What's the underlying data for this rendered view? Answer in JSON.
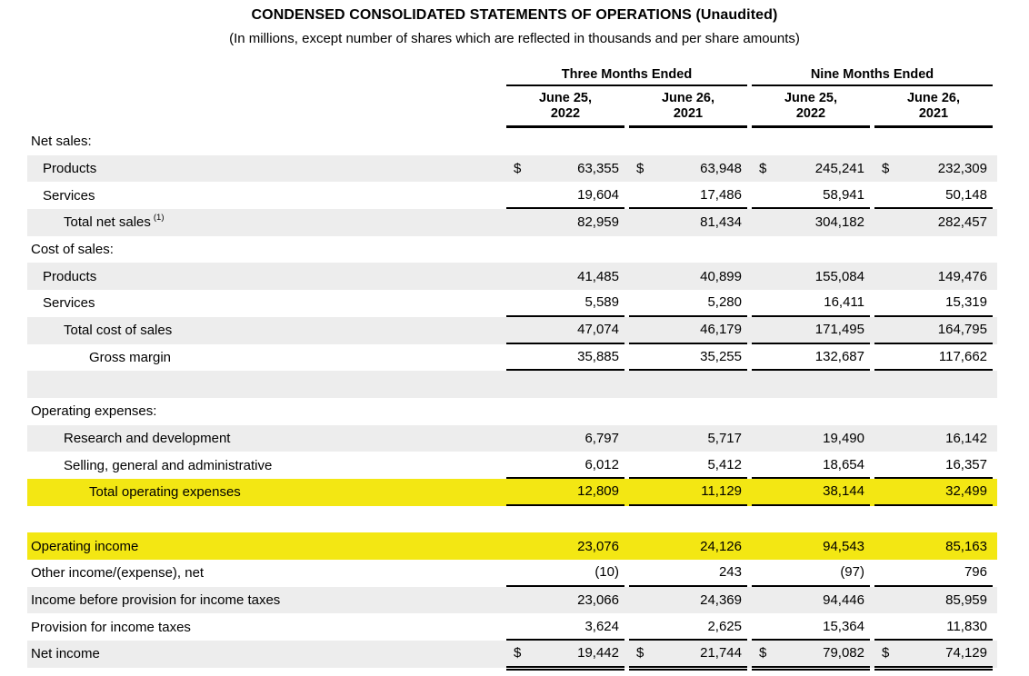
{
  "title": "CONDENSED CONSOLIDATED STATEMENTS OF OPERATIONS (Unaudited)",
  "subtitle": "(In millions, except number of shares which are reflected in thousands and per share amounts)",
  "colors": {
    "row_shading": "#ededed",
    "highlight": "#f3e713",
    "text": "#000000",
    "background": "#ffffff"
  },
  "table": {
    "period_groups": [
      {
        "label": "Three Months Ended",
        "columns": [
          {
            "line1": "June 25,",
            "line2": "2022"
          },
          {
            "line1": "June 26,",
            "line2": "2021"
          }
        ]
      },
      {
        "label": "Nine Months Ended",
        "columns": [
          {
            "line1": "June 25,",
            "line2": "2022"
          },
          {
            "line1": "June 26,",
            "line2": "2021"
          }
        ]
      }
    ],
    "rows": [
      {
        "label": "Net sales:",
        "indent": 0,
        "shaded": false,
        "highlight": false,
        "dollar": false,
        "underline": "none",
        "values": null
      },
      {
        "label": "Products",
        "indent": 1,
        "shaded": true,
        "highlight": false,
        "dollar": true,
        "underline": "none",
        "values": [
          "63,355",
          "63,948",
          "245,241",
          "232,309"
        ]
      },
      {
        "label": "Services",
        "indent": 1,
        "shaded": false,
        "highlight": false,
        "dollar": false,
        "underline": "single",
        "values": [
          "19,604",
          "17,486",
          "58,941",
          "50,148"
        ]
      },
      {
        "label": "Total net sales",
        "footnote": "(1)",
        "indent": 2,
        "shaded": true,
        "highlight": false,
        "dollar": false,
        "underline": "none",
        "values": [
          "82,959",
          "81,434",
          "304,182",
          "282,457"
        ]
      },
      {
        "label": "Cost of sales:",
        "indent": 0,
        "shaded": false,
        "highlight": false,
        "dollar": false,
        "underline": "none",
        "values": null
      },
      {
        "label": "Products",
        "indent": 1,
        "shaded": true,
        "highlight": false,
        "dollar": false,
        "underline": "none",
        "values": [
          "41,485",
          "40,899",
          "155,084",
          "149,476"
        ]
      },
      {
        "label": "Services",
        "indent": 1,
        "shaded": false,
        "highlight": false,
        "dollar": false,
        "underline": "single",
        "values": [
          "5,589",
          "5,280",
          "16,411",
          "15,319"
        ]
      },
      {
        "label": "Total cost of sales",
        "indent": 2,
        "shaded": true,
        "highlight": false,
        "dollar": false,
        "underline": "single",
        "values": [
          "47,074",
          "46,179",
          "171,495",
          "164,795"
        ]
      },
      {
        "label": "Gross margin",
        "indent": 3,
        "shaded": false,
        "highlight": false,
        "dollar": false,
        "underline": "single",
        "values": [
          "35,885",
          "35,255",
          "132,687",
          "117,662"
        ]
      },
      {
        "label": "",
        "indent": 0,
        "shaded": true,
        "highlight": false,
        "dollar": false,
        "underline": "none",
        "values": null
      },
      {
        "label": "Operating expenses:",
        "indent": 0,
        "shaded": false,
        "highlight": false,
        "dollar": false,
        "underline": "none",
        "values": null
      },
      {
        "label": "Research and development",
        "indent": 2,
        "shaded": true,
        "highlight": false,
        "dollar": false,
        "underline": "none",
        "values": [
          "6,797",
          "5,717",
          "19,490",
          "16,142"
        ]
      },
      {
        "label": "Selling, general and administrative",
        "indent": 2,
        "shaded": false,
        "highlight": false,
        "dollar": false,
        "underline": "single",
        "values": [
          "6,012",
          "5,412",
          "18,654",
          "16,357"
        ]
      },
      {
        "label": "Total operating expenses",
        "indent": 3,
        "shaded": false,
        "highlight": true,
        "dollar": false,
        "underline": "single",
        "values": [
          "12,809",
          "11,129",
          "38,144",
          "32,499"
        ]
      },
      {
        "label": "",
        "indent": 0,
        "shaded": false,
        "highlight": false,
        "dollar": false,
        "underline": "none",
        "values": null
      },
      {
        "label": "Operating income",
        "indent": 0,
        "shaded": false,
        "highlight": true,
        "dollar": false,
        "underline": "none",
        "values": [
          "23,076",
          "24,126",
          "94,543",
          "85,163"
        ]
      },
      {
        "label": "Other income/(expense), net",
        "indent": 0,
        "shaded": false,
        "highlight": false,
        "dollar": false,
        "underline": "single",
        "values": [
          "(10)",
          "243",
          "(97)",
          "796"
        ]
      },
      {
        "label": "Income before provision for income taxes",
        "indent": 0,
        "shaded": true,
        "highlight": false,
        "dollar": false,
        "underline": "none",
        "values": [
          "23,066",
          "24,369",
          "94,446",
          "85,959"
        ]
      },
      {
        "label": "Provision for income taxes",
        "indent": 0,
        "shaded": false,
        "highlight": false,
        "dollar": false,
        "underline": "single",
        "values": [
          "3,624",
          "2,625",
          "15,364",
          "11,830"
        ]
      },
      {
        "label": "Net income",
        "indent": 0,
        "shaded": true,
        "highlight": false,
        "dollar": true,
        "underline": "double",
        "values": [
          "19,442",
          "21,744",
          "79,082",
          "74,129"
        ]
      }
    ]
  }
}
